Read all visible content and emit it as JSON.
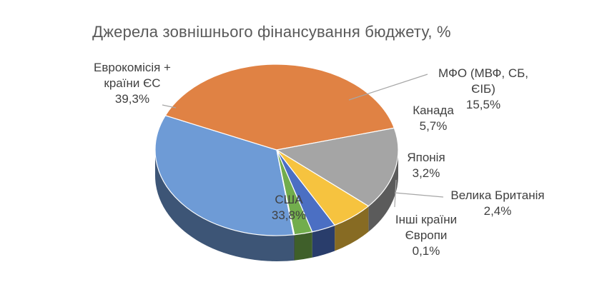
{
  "chart_data": {
    "type": "pie",
    "title": "Джерела зовнішнього фінансування бюджету, %",
    "categories": [
      "США",
      "Еврокомісія + країни ЄС",
      "МФО (МВФ, СБ, ЄІБ)",
      "Канада",
      "Японія",
      "Велика Британія",
      "Інші країни Європи"
    ],
    "values": [
      33.8,
      39.3,
      15.5,
      5.7,
      3.2,
      2.4,
      0.1
    ],
    "value_labels": [
      "33,8%",
      "39,3%",
      "15,5%",
      "5,7%",
      "3,2%",
      "2,4%",
      "0,1%"
    ],
    "colors": [
      "#6e9bd6",
      "#e08244",
      "#a5a5a5",
      "#f6c33f",
      "#4b6fc3",
      "#72ad4d",
      "#2f4f7e"
    ],
    "label_lines": [
      [
        "США"
      ],
      [
        "Еврокомісія +",
        "країни ЄС"
      ],
      [
        "МФО (МВФ, СБ,",
        "ЄІБ)"
      ],
      [
        "Канада"
      ],
      [
        "Японія"
      ],
      [
        "Велика Британія"
      ],
      [
        "Інші країни",
        "Європи"
      ]
    ],
    "style": "3d-pie",
    "legend": "none"
  }
}
